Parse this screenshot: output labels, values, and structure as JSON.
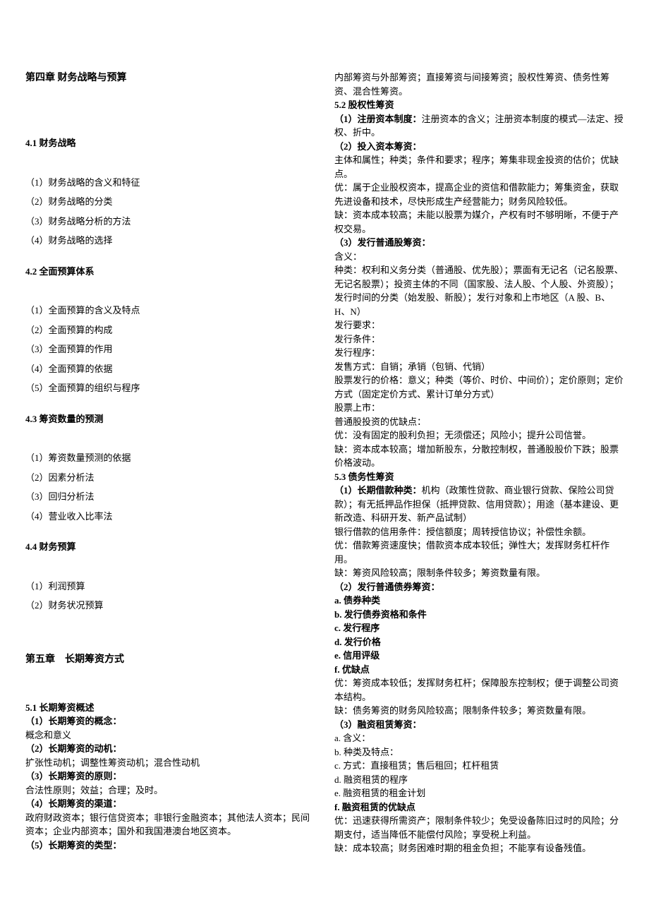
{
  "ch4": {
    "title": "第四章 财务战略与预算",
    "s41": {
      "title": "4.1 财务战略",
      "items": [
        "（1）财务战略的含义和特征",
        "（2）财务战略的分类",
        "（3）财务战略分析的方法",
        "（4）财务战略的选择"
      ]
    },
    "s42": {
      "title": "4.2 全面预算体系",
      "items": [
        "（1）全面预算的含义及特点",
        "（2）全面预算的构成",
        "（3）全面预算的作用",
        "（4）全面预算的依据",
        "（5）全面预算的组织与程序"
      ]
    },
    "s43": {
      "title": "4.3 筹资数量的预测",
      "items": [
        "（1）筹资数量预测的依据",
        "（2）因素分析法",
        "（3）回归分析法",
        "（4）营业收入比率法"
      ]
    },
    "s44": {
      "title": "4.4 财务预算",
      "items": [
        "（1）利润预算",
        "（2）财务状况预算"
      ]
    }
  },
  "ch5": {
    "title": "第五章　长期筹资方式",
    "s51": {
      "title": "5.1 长期筹资概述",
      "p1": {
        "h": "（1）长期筹资的概念：",
        "t": "概念和意义"
      },
      "p2": {
        "h": "（2）长期筹资的动机：",
        "t": "扩张性动机；调整性筹资动机；混合性动机"
      },
      "p3": {
        "h": "（3）长期筹资的原则：",
        "t": "合法性原则；效益；合理；及时。"
      },
      "p4": {
        "h": "（4）长期筹资的渠道：",
        "t": "政府财政资本；银行信贷资本；非银行金融资本；其他法人资本；民间资本；企业内部资本；国外和我国港澳台地区资本。"
      },
      "p5": {
        "h": "（5）长期筹资的类型：",
        "t": "内部筹资与外部筹资；直接筹资与间接筹资；股权性筹资、债务性筹资、混合性筹资。"
      }
    },
    "s52": {
      "title": "5.2 股权性筹资",
      "p1": {
        "h": "（1）注册资本制度：",
        "t": "注册资本的含义；注册资本制度的模式—法定、授权、折中。"
      },
      "p2h": "（2）投入资本筹资：",
      "p2a": "主体和属性；种类；条件和要求；程序；筹集非现金投资的估价；优缺点。",
      "p2b": "优：属于企业股权资本，提高企业的资信和借款能力；筹集资金，获取先进设备和技术，尽快形成生产经营能力；财务风险较低。",
      "p2c": "缺：资本成本较高；未能以股票为媒介，产权有时不够明晰，不便于产权交易。",
      "p3h": "（3）发行普通股筹资：",
      "p3_lines": [
        "含义：",
        "种类：权利和义务分类（普通股、优先股）；票面有无记名（记名股票、无记名股票）；投资主体的不同（国家股、法人股、个人股、外资股）；发行时间的分类（始发股、新股）；发行对象和上市地区（A 股、B、H、N）",
        "发行要求：",
        "发行条件：",
        "发行程序：",
        "发售方式：自销；承销（包销、代销）",
        "股票发行的价格：意义；种类（等价、时价、中间价）；定价原则；定价方式（固定定价方式、累计订单分方式）",
        "股票上市：",
        "普通股投资的优缺点：",
        "优：没有固定的股利负担；无须偿还；风险小；提升公司信誉。",
        "缺：资本成本较高；增加新股东，分散控制权，普通股股价下跌；股票价格波动。"
      ]
    },
    "s53": {
      "title": "5.3 债务性筹资",
      "p1h": "（1）长期借款种类：",
      "p1a": "机构（政策性贷款、商业银行贷款、保险公司贷款）；有无抵押品作担保（抵押贷款、信用贷款）；用途（基本建设、更新改造、科研开发、新产品试制）",
      "p1b": "银行借款的信用条件：授信额度；周转授信协议；补偿性余额。",
      "p1c": "优：借款筹资速度快；借款资本成本较低；弹性大；发挥财务杠杆作用。",
      "p1d": "缺：筹资风险较高；限制条件较多；筹资数量有限。",
      "p2h": "（2）发行普通债券筹资：",
      "p2_list": [
        "a. 债券种类",
        "b. 发行债券资格和条件",
        "c. 发行程序",
        "d. 发行价格",
        "e. 信用评级",
        "f. 优缺点"
      ],
      "p2_adv": "优：筹资成本较低；发挥财务杠杆；保障股东控制权；便于调整公司资本结构。",
      "p2_dis": "缺：债务筹资的财务风险较高；限制条件较多；筹资数量有限。",
      "p3h": "（3）融资租赁筹资：",
      "p3_list": [
        "a. 含义：",
        "b. 种类及特点：",
        "c. 方式：直接租赁；售后租回；杠杆租赁",
        "d. 融资租赁的程序",
        "e. 融资租赁的租金计划"
      ],
      "p3_f": "f. 融资租赁的优缺点",
      "p3_adv": "优：迅速获得所需资产；限制条件较少；免受设备陈旧过时的风险；分期支付，适当降低不能偿付风险；享受税上利益。",
      "p3_dis": "缺：成本较高；财务困难时期的租金负担；不能享有设备残值。"
    }
  }
}
